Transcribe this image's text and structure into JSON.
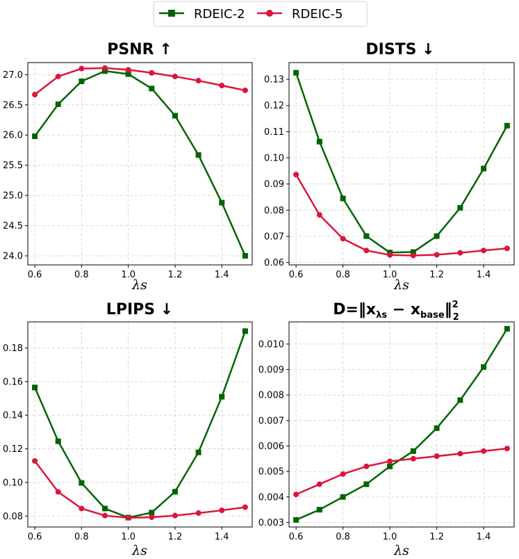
{
  "legend": {
    "items": [
      {
        "label": "RDEIC-2",
        "color": "#006400",
        "marker": "square"
      },
      {
        "label": "RDEIC-5",
        "color": "#dc143c",
        "marker": "circle"
      }
    ]
  },
  "chart_data": [
    {
      "type": "line",
      "title": "PSNR ↑",
      "xlabel": "λs",
      "x": [
        0.6,
        0.7,
        0.8,
        0.9,
        1.0,
        1.1,
        1.2,
        1.3,
        1.4,
        1.5
      ],
      "xlim": [
        0.57,
        1.53
      ],
      "xticks": [
        "0.6",
        "0.8",
        "1.0",
        "1.2",
        "1.4"
      ],
      "ylim": [
        23.85,
        27.2
      ],
      "yticks": [
        "24.0",
        "24.5",
        "25.0",
        "25.5",
        "26.0",
        "26.5",
        "27.0"
      ],
      "grid": true,
      "series": [
        {
          "name": "RDEIC-2",
          "values": [
            25.98,
            26.51,
            26.89,
            27.06,
            27.01,
            26.77,
            26.32,
            25.67,
            24.88,
            24.0
          ]
        },
        {
          "name": "RDEIC-5",
          "values": [
            26.67,
            26.97,
            27.1,
            27.11,
            27.08,
            27.03,
            26.97,
            26.9,
            26.82,
            26.74
          ]
        }
      ]
    },
    {
      "type": "line",
      "title": "DISTS ↓",
      "xlabel": "λs",
      "x": [
        0.6,
        0.7,
        0.8,
        0.9,
        1.0,
        1.1,
        1.2,
        1.3,
        1.4,
        1.5
      ],
      "xlim": [
        0.57,
        1.53
      ],
      "xticks": [
        "0.6",
        "0.8",
        "1.0",
        "1.2",
        "1.4"
      ],
      "ylim": [
        0.0591,
        0.1364
      ],
      "yticks": [
        "0.06",
        "0.07",
        "0.08",
        "0.09",
        "0.10",
        "0.11",
        "0.12",
        "0.13"
      ],
      "grid": true,
      "series": [
        {
          "name": "RDEIC-2",
          "values": [
            0.1325,
            0.1062,
            0.0845,
            0.0701,
            0.0638,
            0.064,
            0.0701,
            0.0809,
            0.0959,
            0.1123
          ]
        },
        {
          "name": "RDEIC-5",
          "values": [
            0.0936,
            0.0782,
            0.0691,
            0.0646,
            0.0629,
            0.0627,
            0.063,
            0.0637,
            0.0646,
            0.0654
          ]
        }
      ]
    },
    {
      "type": "line",
      "title": "LPIPS ↓",
      "xlabel": "λs",
      "x": [
        0.6,
        0.7,
        0.8,
        0.9,
        1.0,
        1.1,
        1.2,
        1.3,
        1.4,
        1.5
      ],
      "xlim": [
        0.57,
        1.53
      ],
      "xticks": [
        "0.6",
        "0.8",
        "1.0",
        "1.2",
        "1.4"
      ],
      "ylim": [
        0.0735,
        0.1955
      ],
      "yticks": [
        "0.08",
        "0.10",
        "0.12",
        "0.14",
        "0.16",
        "0.18"
      ],
      "grid": true,
      "series": [
        {
          "name": "RDEIC-2",
          "values": [
            0.1565,
            0.1245,
            0.0997,
            0.0845,
            0.0791,
            0.0821,
            0.0945,
            0.1179,
            0.151,
            0.19
          ]
        },
        {
          "name": "RDEIC-5",
          "values": [
            0.1128,
            0.0944,
            0.0845,
            0.0803,
            0.079,
            0.0793,
            0.0803,
            0.0818,
            0.0834,
            0.0853
          ]
        }
      ]
    },
    {
      "type": "line",
      "title": "D=‖x",
      "title_sub": "λs",
      "title_mid": " − x",
      "title_sub2": "base",
      "title_end": "‖",
      "title_sup": "2",
      "title_sub3": "2",
      "xlabel": "λs",
      "x": [
        0.6,
        0.7,
        0.8,
        0.9,
        1.0,
        1.1,
        1.2,
        1.3,
        1.4,
        1.5
      ],
      "xlim": [
        0.57,
        1.53
      ],
      "xticks": [
        "0.6",
        "0.8",
        "1.0",
        "1.2",
        "1.4"
      ],
      "ylim": [
        0.00282,
        0.01087
      ],
      "yticks": [
        "0.003",
        "0.004",
        "0.005",
        "0.006",
        "0.007",
        "0.008",
        "0.009",
        "0.010"
      ],
      "grid": true,
      "series": [
        {
          "name": "RDEIC-2",
          "values": [
            0.0031,
            0.0035,
            0.004,
            0.0045,
            0.0052,
            0.0058,
            0.0067,
            0.0078,
            0.0091,
            0.0106
          ]
        },
        {
          "name": "RDEIC-5",
          "values": [
            0.0041,
            0.0045,
            0.0049,
            0.0052,
            0.0054,
            0.0055,
            0.0056,
            0.0057,
            0.0058,
            0.0059
          ]
        }
      ]
    }
  ]
}
